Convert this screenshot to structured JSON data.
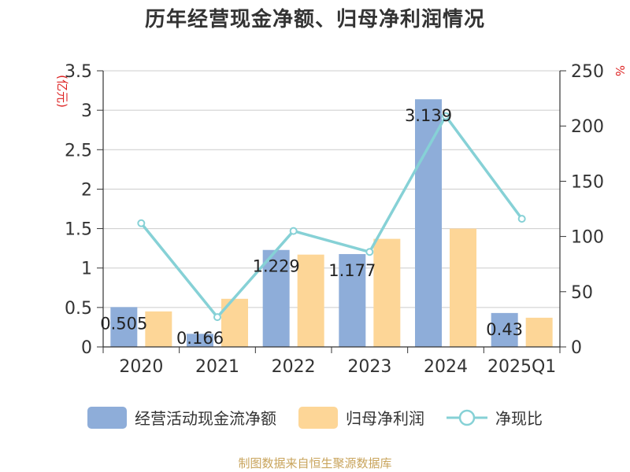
{
  "title": "历年经营现金净额、归母净利润情况",
  "source": "制图数据来自恒生聚源数据库",
  "colors": {
    "bar1": "#8eadd9",
    "bar2": "#fdd697",
    "line": "#86d1d6",
    "axis": "#333333",
    "grid": "#cccccc",
    "unit": "#dd2222"
  },
  "chart_data": {
    "type": "bar",
    "categories": [
      "2020",
      "2021",
      "2022",
      "2023",
      "2024",
      "2025Q1"
    ],
    "series": [
      {
        "name": "经营活动现金流净额",
        "type": "bar",
        "axis": "left",
        "values": [
          0.505,
          0.166,
          1.229,
          1.177,
          3.139,
          0.43
        ],
        "data_labels": [
          "0.505",
          "0.166",
          "1.229",
          "1.177",
          "3.139",
          "0.43"
        ]
      },
      {
        "name": "归母净利润",
        "type": "bar",
        "axis": "left",
        "values": [
          0.45,
          0.61,
          1.17,
          1.37,
          1.5,
          0.37
        ]
      },
      {
        "name": "净现比",
        "type": "line",
        "axis": "right",
        "values": [
          112,
          27,
          105,
          86,
          209,
          116
        ]
      }
    ],
    "y_left": {
      "unit": "(亿元)",
      "min": 0,
      "max": 3.5,
      "ticks": [
        0,
        0.5,
        1,
        1.5,
        2,
        2.5,
        3,
        3.5
      ],
      "tick_labels": [
        "0",
        "0.5",
        "1",
        "1.5",
        "2",
        "2.5",
        "3",
        "3.5"
      ]
    },
    "y_right": {
      "unit": "%",
      "min": 0,
      "max": 250,
      "ticks": [
        0,
        50,
        100,
        150,
        200,
        250
      ],
      "tick_labels": [
        "0",
        "50",
        "100",
        "150",
        "200",
        "250"
      ]
    },
    "grid": true,
    "legend_position": "bottom"
  }
}
